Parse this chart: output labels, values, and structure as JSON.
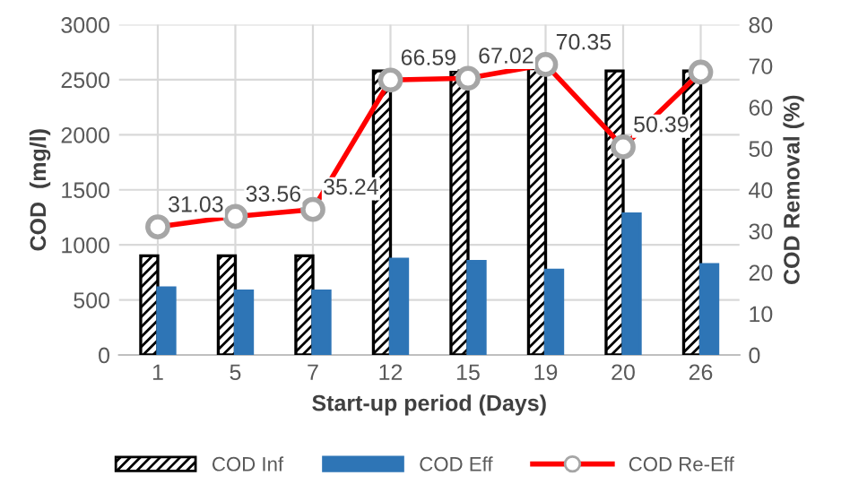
{
  "chart_data": {
    "type": "bar",
    "xlabel": "Start-up period (Days)",
    "ylabel": "COD  (mg/l)",
    "y2label": "COD Removal (%)",
    "categories": [
      "1",
      "5",
      "7",
      "12",
      "15",
      "19",
      "20",
      "26"
    ],
    "series": [
      {
        "name": "COD Inf",
        "color": "#000000",
        "values": [
          900,
          900,
          900,
          2580,
          2580,
          2600,
          2580,
          2580
        ]
      },
      {
        "name": "COD Eff",
        "color": "#2e75b6",
        "values": [
          610,
          580,
          580,
          870,
          850,
          770,
          1280,
          820
        ]
      },
      {
        "name": "COD Re-Eff",
        "type": "line",
        "axis": "y2",
        "color": "#ff0000",
        "marker": "circle",
        "values": [
          31.03,
          33.56,
          35.24,
          66.59,
          67.02,
          70.35,
          50.39,
          68.5
        ],
        "value_labels": [
          "31.03",
          "33.56",
          "35.24",
          "66.59",
          "67.02",
          "70.35",
          "50.39",
          null
        ]
      }
    ],
    "ylim": [
      0,
      3000
    ],
    "yticks": [
      0,
      500,
      1000,
      1500,
      2000,
      2500,
      3000
    ],
    "y2lim": [
      0,
      80
    ],
    "y2ticks": [
      0,
      10,
      20,
      30,
      40,
      50,
      60,
      70,
      80
    ],
    "grid": true,
    "legend": "bottom"
  }
}
